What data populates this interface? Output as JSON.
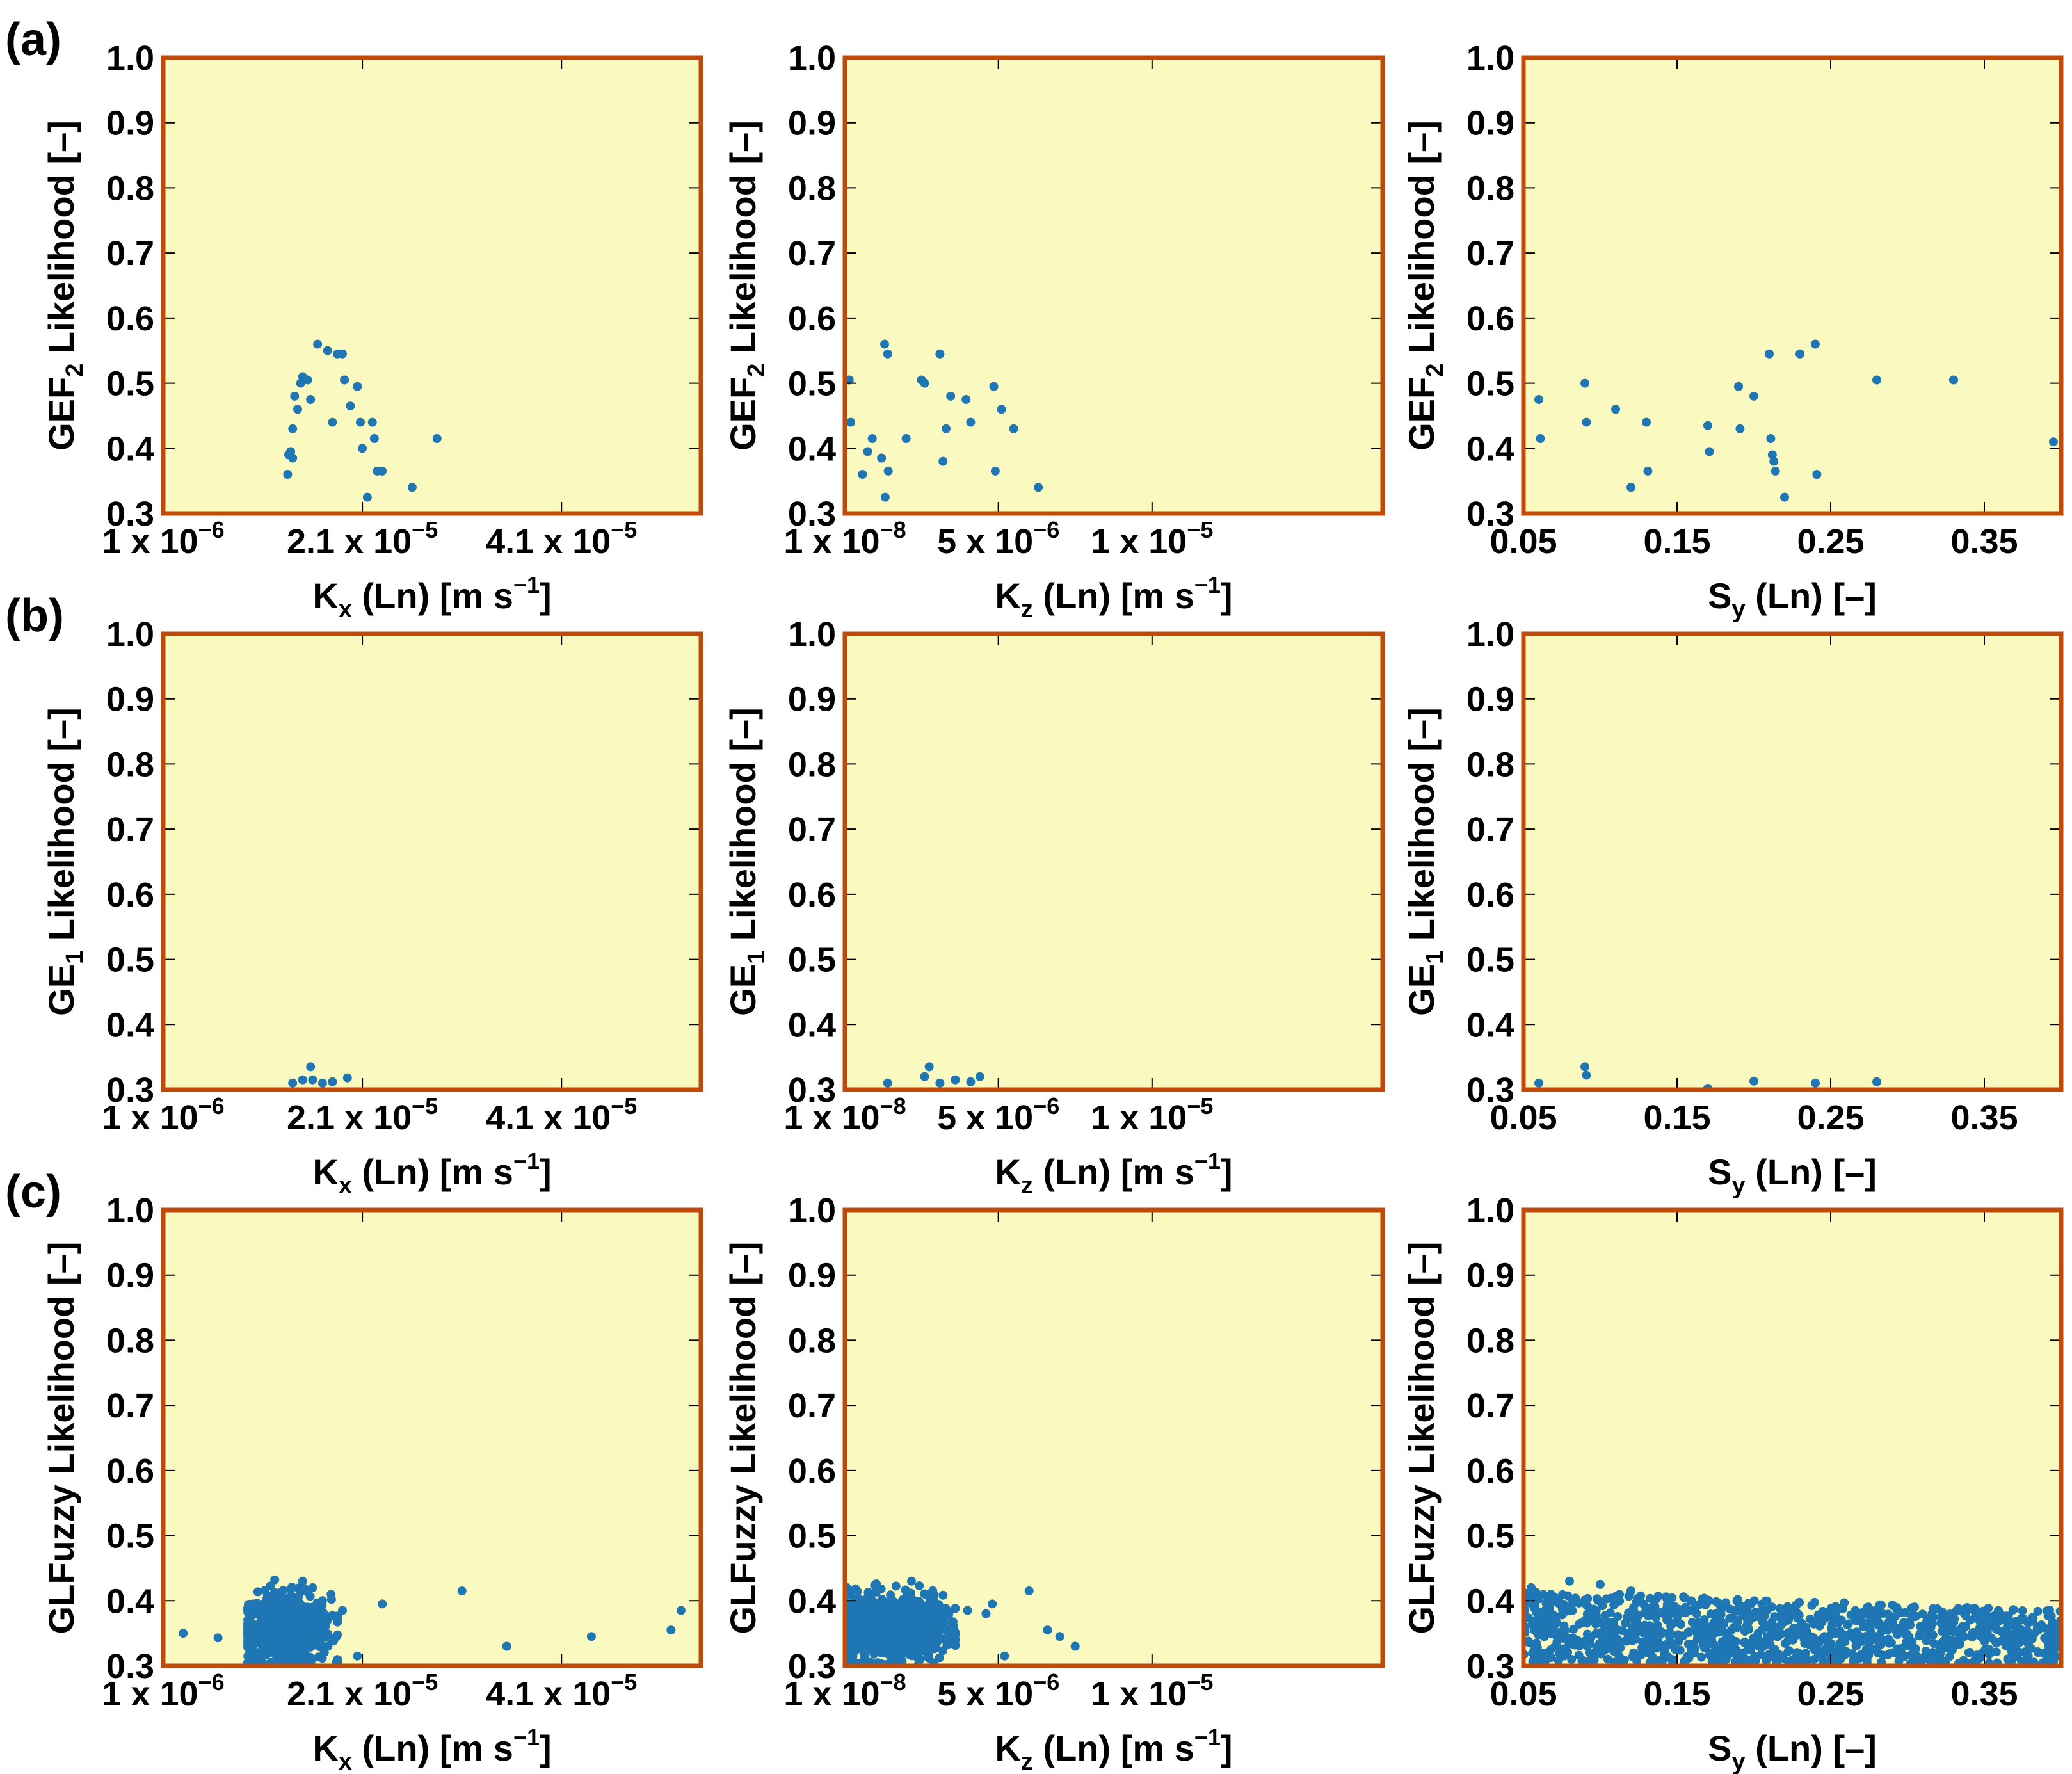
{
  "figure": {
    "row_labels": [
      "(a)",
      "(b)",
      "(c)"
    ],
    "colors": {
      "plot_background": "#fafac0",
      "frame": "#c04a0a",
      "points": "#1f76b4"
    }
  },
  "chart_data": [
    {
      "id": "a-kx",
      "type": "scatter",
      "row": "(a)",
      "ylabel": {
        "main": "GEF",
        "sub": "2",
        "rest": " Likelihood [–]"
      },
      "xlabel": {
        "main": "K",
        "sub": "x",
        "mid": " (Ln) [m s",
        "sup": "−1",
        "end": "]"
      },
      "xlim": [
        1e-06,
        5.5e-05
      ],
      "ylim": [
        0.3,
        1.0
      ],
      "xticks": [
        {
          "value": 1e-06,
          "base": "1 x 10",
          "exp": "−6"
        },
        {
          "value": 2.1e-05,
          "base": "2.1 x 10",
          "exp": "−5"
        },
        {
          "value": 4.1e-05,
          "base": "4.1 x 10",
          "exp": "−5"
        }
      ],
      "yticks": [
        "0.3",
        "0.4",
        "0.5",
        "0.6",
        "0.7",
        "0.8",
        "0.9",
        "1.0"
      ],
      "points": [
        [
          1.35e-05,
          0.36
        ],
        [
          1.36e-05,
          0.39
        ],
        [
          1.38e-05,
          0.395
        ],
        [
          1.4e-05,
          0.385
        ],
        [
          1.4e-05,
          0.43
        ],
        [
          1.42e-05,
          0.48
        ],
        [
          1.45e-05,
          0.46
        ],
        [
          1.48e-05,
          0.5
        ],
        [
          1.5e-05,
          0.51
        ],
        [
          1.55e-05,
          0.505
        ],
        [
          1.58e-05,
          0.475
        ],
        [
          1.65e-05,
          0.56
        ],
        [
          1.75e-05,
          0.55
        ],
        [
          1.8e-05,
          0.44
        ],
        [
          1.85e-05,
          0.545
        ],
        [
          1.9e-05,
          0.545
        ],
        [
          1.92e-05,
          0.505
        ],
        [
          1.98e-05,
          0.465
        ],
        [
          2.05e-05,
          0.495
        ],
        [
          2.08e-05,
          0.44
        ],
        [
          2.1e-05,
          0.4
        ],
        [
          2.15e-05,
          0.325
        ],
        [
          2.2e-05,
          0.44
        ],
        [
          2.22e-05,
          0.415
        ],
        [
          2.25e-05,
          0.365
        ],
        [
          2.3e-05,
          0.365
        ],
        [
          2.6e-05,
          0.34
        ],
        [
          2.85e-05,
          0.415
        ]
      ]
    },
    {
      "id": "a-kz",
      "type": "scatter",
      "row": "(a)",
      "ylabel": {
        "main": "GEF",
        "sub": "2",
        "rest": " Likelihood [–]"
      },
      "xlabel": {
        "main": "K",
        "sub": "z",
        "mid": " (Ln) [m s",
        "sup": "−1",
        "end": "]"
      },
      "xlim": [
        1e-08,
        1.75e-05
      ],
      "ylim": [
        0.3,
        1.0
      ],
      "xticks": [
        {
          "value": 1e-08,
          "base": "1 x 10",
          "exp": "−8"
        },
        {
          "value": 5e-06,
          "base": "5 x 10",
          "exp": "−6"
        },
        {
          "value": 1e-05,
          "base": "1 x 10",
          "exp": "−5"
        }
      ],
      "yticks": [
        "0.3",
        "0.4",
        "0.5",
        "0.6",
        "0.7",
        "0.8",
        "0.9",
        "1.0"
      ],
      "points": [
        [
          1.5e-07,
          0.505
        ],
        [
          2e-07,
          0.44
        ],
        [
          5.8e-07,
          0.36
        ],
        [
          7.5e-07,
          0.395
        ],
        [
          9e-07,
          0.415
        ],
        [
          1.2e-06,
          0.385
        ],
        [
          1.3e-06,
          0.56
        ],
        [
          1.32e-06,
          0.325
        ],
        [
          1.4e-06,
          0.545
        ],
        [
          1.42e-06,
          0.365
        ],
        [
          2e-06,
          0.415
        ],
        [
          2.5e-06,
          0.505
        ],
        [
          2.6e-06,
          0.5
        ],
        [
          3.1e-06,
          0.545
        ],
        [
          3.2e-06,
          0.38
        ],
        [
          3.3e-06,
          0.43
        ],
        [
          3.45e-06,
          0.48
        ],
        [
          3.95e-06,
          0.475
        ],
        [
          4.1e-06,
          0.44
        ],
        [
          4.85e-06,
          0.495
        ],
        [
          4.9e-06,
          0.365
        ],
        [
          5.1e-06,
          0.46
        ],
        [
          5.5e-06,
          0.43
        ],
        [
          6.3e-06,
          0.34
        ]
      ]
    },
    {
      "id": "a-sy",
      "type": "scatter",
      "row": "(a)",
      "ylabel": {
        "main": "GEF",
        "sub": "2",
        "rest": " Likelihood [–]"
      },
      "xlabel": {
        "main": "S",
        "sub": "y",
        "mid": " (Ln) [–]",
        "sup": "",
        "end": ""
      },
      "xlim": [
        0.05,
        0.4
      ],
      "ylim": [
        0.3,
        1.0
      ],
      "xticks": [
        {
          "value": 0.05,
          "base": "0.05",
          "exp": ""
        },
        {
          "value": 0.15,
          "base": "0.15",
          "exp": ""
        },
        {
          "value": 0.25,
          "base": "0.25",
          "exp": ""
        },
        {
          "value": 0.35,
          "base": "0.35",
          "exp": ""
        }
      ],
      "yticks": [
        "0.3",
        "0.4",
        "0.5",
        "0.6",
        "0.7",
        "0.8",
        "0.9",
        "1.0"
      ],
      "points": [
        [
          0.06,
          0.475
        ],
        [
          0.061,
          0.415
        ],
        [
          0.09,
          0.5
        ],
        [
          0.091,
          0.44
        ],
        [
          0.11,
          0.46
        ],
        [
          0.12,
          0.34
        ],
        [
          0.13,
          0.44
        ],
        [
          0.131,
          0.365
        ],
        [
          0.17,
          0.435
        ],
        [
          0.171,
          0.395
        ],
        [
          0.19,
          0.495
        ],
        [
          0.191,
          0.43
        ],
        [
          0.2,
          0.48
        ],
        [
          0.21,
          0.545
        ],
        [
          0.211,
          0.415
        ],
        [
          0.212,
          0.39
        ],
        [
          0.213,
          0.38
        ],
        [
          0.214,
          0.365
        ],
        [
          0.22,
          0.325
        ],
        [
          0.23,
          0.545
        ],
        [
          0.24,
          0.56
        ],
        [
          0.241,
          0.36
        ],
        [
          0.28,
          0.505
        ],
        [
          0.33,
          0.505
        ],
        [
          0.395,
          0.41
        ]
      ]
    },
    {
      "id": "b-kx",
      "type": "scatter",
      "row": "(b)",
      "ylabel": {
        "main": "GE",
        "sub": "1",
        "rest": " Likelihood [–]"
      },
      "xlabel": {
        "main": "K",
        "sub": "x",
        "mid": " (Ln) [m s",
        "sup": "−1",
        "end": "]"
      },
      "xlim": [
        1e-06,
        5.5e-05
      ],
      "ylim": [
        0.3,
        1.0
      ],
      "xticks": [
        {
          "value": 1e-06,
          "base": "1 x 10",
          "exp": "−6"
        },
        {
          "value": 2.1e-05,
          "base": "2.1 x 10",
          "exp": "−5"
        },
        {
          "value": 4.1e-05,
          "base": "4.1 x 10",
          "exp": "−5"
        }
      ],
      "yticks": [
        "0.3",
        "0.4",
        "0.5",
        "0.6",
        "0.7",
        "0.8",
        "0.9",
        "1.0"
      ],
      "points": [
        [
          1.4e-05,
          0.31
        ],
        [
          1.5e-05,
          0.315
        ],
        [
          1.58e-05,
          0.335
        ],
        [
          1.6e-05,
          0.315
        ],
        [
          1.7e-05,
          0.31
        ],
        [
          1.8e-05,
          0.312
        ],
        [
          1.95e-05,
          0.318
        ]
      ]
    },
    {
      "id": "b-kz",
      "type": "scatter",
      "row": "(b)",
      "ylabel": {
        "main": "GE",
        "sub": "1",
        "rest": " Likelihood [–]"
      },
      "xlabel": {
        "main": "K",
        "sub": "z",
        "mid": " (Ln) [m s",
        "sup": "−1",
        "end": "]"
      },
      "xlim": [
        1e-08,
        1.75e-05
      ],
      "ylim": [
        0.3,
        1.0
      ],
      "xticks": [
        {
          "value": 1e-08,
          "base": "1 x 10",
          "exp": "−8"
        },
        {
          "value": 5e-06,
          "base": "5 x 10",
          "exp": "−6"
        },
        {
          "value": 1e-05,
          "base": "1 x 10",
          "exp": "−5"
        }
      ],
      "yticks": [
        "0.3",
        "0.4",
        "0.5",
        "0.6",
        "0.7",
        "0.8",
        "0.9",
        "1.0"
      ],
      "points": [
        [
          1.4e-06,
          0.31
        ],
        [
          2.6e-06,
          0.32
        ],
        [
          2.75e-06,
          0.335
        ],
        [
          3.1e-06,
          0.31
        ],
        [
          3.6e-06,
          0.315
        ],
        [
          4.1e-06,
          0.312
        ],
        [
          4.4e-06,
          0.32
        ]
      ]
    },
    {
      "id": "b-sy",
      "type": "scatter",
      "row": "(b)",
      "ylabel": {
        "main": "GE",
        "sub": "1",
        "rest": " Likelihood [–]"
      },
      "xlabel": {
        "main": "S",
        "sub": "y",
        "mid": " (Ln) [–]",
        "sup": "",
        "end": ""
      },
      "xlim": [
        0.05,
        0.4
      ],
      "ylim": [
        0.3,
        1.0
      ],
      "xticks": [
        {
          "value": 0.05,
          "base": "0.05",
          "exp": ""
        },
        {
          "value": 0.15,
          "base": "0.15",
          "exp": ""
        },
        {
          "value": 0.25,
          "base": "0.25",
          "exp": ""
        },
        {
          "value": 0.35,
          "base": "0.35",
          "exp": ""
        }
      ],
      "yticks": [
        "0.3",
        "0.4",
        "0.5",
        "0.6",
        "0.7",
        "0.8",
        "0.9",
        "1.0"
      ],
      "points": [
        [
          0.06,
          0.31
        ],
        [
          0.09,
          0.335
        ],
        [
          0.091,
          0.322
        ],
        [
          0.17,
          0.302
        ],
        [
          0.2,
          0.313
        ],
        [
          0.24,
          0.31
        ],
        [
          0.28,
          0.312
        ]
      ]
    },
    {
      "id": "c-kx",
      "type": "scatter",
      "row": "(c)",
      "ylabel": {
        "main": "GLFuzzy",
        "sub": "",
        "rest": " Likelihood [–]"
      },
      "xlabel": {
        "main": "K",
        "sub": "x",
        "mid": " (Ln) [m s",
        "sup": "−1",
        "end": "]"
      },
      "xlim": [
        1e-06,
        5.5e-05
      ],
      "ylim": [
        0.3,
        1.0
      ],
      "xticks": [
        {
          "value": 1e-06,
          "base": "1 x 10",
          "exp": "−6"
        },
        {
          "value": 2.1e-05,
          "base": "2.1 x 10",
          "exp": "−5"
        },
        {
          "value": 4.1e-05,
          "base": "4.1 x 10",
          "exp": "−5"
        }
      ],
      "yticks": [
        "0.3",
        "0.4",
        "0.5",
        "0.6",
        "0.7",
        "0.8",
        "0.9",
        "1.0"
      ],
      "points": [
        [
          3e-06,
          0.35
        ],
        [
          6.5e-06,
          0.343
        ],
        [
          1.9e-05,
          0.385
        ],
        [
          2.05e-05,
          0.315
        ],
        [
          2.3e-05,
          0.395
        ],
        [
          3.1e-05,
          0.415
        ],
        [
          3.55e-05,
          0.33
        ],
        [
          4.4e-05,
          0.345
        ],
        [
          5.2e-05,
          0.355
        ],
        [
          5.3e-05,
          0.385
        ],
        [
          1.5e-05,
          0.43
        ],
        [
          1.6e-05,
          0.42
        ],
        [
          1.7e-05,
          0.4
        ],
        [
          1.75e-05,
          0.37
        ],
        [
          1.8e-05,
          0.34
        ]
      ],
      "cluster": {
        "center": [
          1.32e-05,
          0.355
        ],
        "spread": [
          2.3e-06,
          0.027
        ],
        "count": 700,
        "xrange": [
          9.5e-06,
          1.85e-05
        ],
        "yrange": [
          0.305,
          0.432
        ]
      }
    },
    {
      "id": "c-kz",
      "type": "scatter",
      "row": "(c)",
      "ylabel": {
        "main": "GLFuzzy",
        "sub": "",
        "rest": " Likelihood [–]"
      },
      "xlabel": {
        "main": "K",
        "sub": "z",
        "mid": " (Ln) [m s",
        "sup": "−1",
        "end": "]"
      },
      "xlim": [
        1e-08,
        1.75e-05
      ],
      "ylim": [
        0.3,
        1.0
      ],
      "xticks": [
        {
          "value": 1e-08,
          "base": "1 x 10",
          "exp": "−8"
        },
        {
          "value": 5e-06,
          "base": "5 x 10",
          "exp": "−6"
        },
        {
          "value": 1e-05,
          "base": "1 x 10",
          "exp": "−5"
        }
      ],
      "yticks": [
        "0.3",
        "0.4",
        "0.5",
        "0.6",
        "0.7",
        "0.8",
        "0.9",
        "1.0"
      ],
      "points": [
        [
          3.5e-06,
          0.36
        ],
        [
          4e-06,
          0.385
        ],
        [
          4.6e-06,
          0.38
        ],
        [
          4.8e-06,
          0.395
        ],
        [
          5.2e-06,
          0.315
        ],
        [
          6e-06,
          0.415
        ],
        [
          6.6e-06,
          0.355
        ],
        [
          7e-06,
          0.345
        ],
        [
          7.5e-06,
          0.33
        ]
      ],
      "cluster": {
        "center": [
          1.4e-06,
          0.358
        ],
        "spread": [
          9e-07,
          0.025
        ],
        "count": 900,
        "xrange": [
          1e-08,
          3.6e-06
        ],
        "yrange": [
          0.302,
          0.43
        ]
      }
    },
    {
      "id": "c-sy",
      "type": "scatter",
      "row": "(c)",
      "ylabel": {
        "main": "GLFuzzy",
        "sub": "",
        "rest": " Likelihood [–]"
      },
      "xlabel": {
        "main": "S",
        "sub": "y",
        "mid": " (Ln) [–]",
        "sup": "",
        "end": ""
      },
      "xlim": [
        0.05,
        0.4
      ],
      "ylim": [
        0.3,
        1.0
      ],
      "xticks": [
        {
          "value": 0.05,
          "base": "0.05",
          "exp": ""
        },
        {
          "value": 0.15,
          "base": "0.15",
          "exp": ""
        },
        {
          "value": 0.25,
          "base": "0.25",
          "exp": ""
        },
        {
          "value": 0.35,
          "base": "0.35",
          "exp": ""
        }
      ],
      "yticks": [
        "0.3",
        "0.4",
        "0.5",
        "0.6",
        "0.7",
        "0.8",
        "0.9",
        "1.0"
      ],
      "points": [
        [
          0.055,
          0.42
        ],
        [
          0.08,
          0.43
        ],
        [
          0.1,
          0.425
        ],
        [
          0.12,
          0.415
        ]
      ],
      "band": {
        "count": 1100,
        "xrange": [
          0.05,
          0.4
        ],
        "y_at_start": [
          0.305,
          0.415
        ],
        "y_at_end": [
          0.302,
          0.385
        ]
      }
    }
  ]
}
